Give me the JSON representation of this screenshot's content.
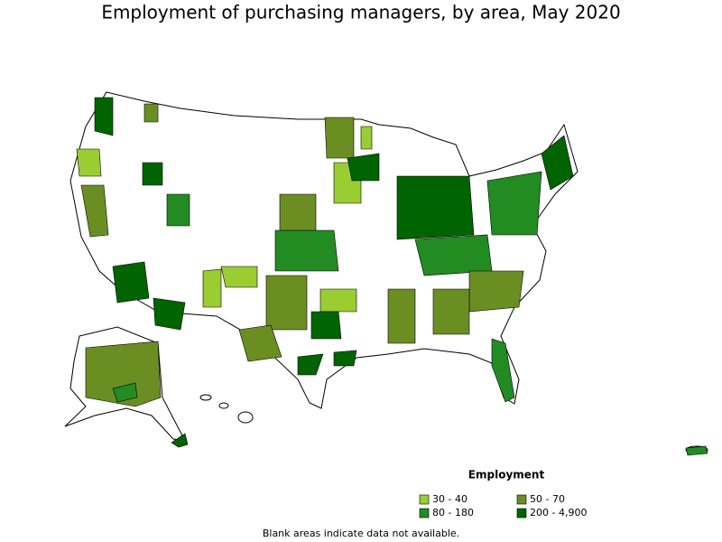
{
  "title": "Employment of purchasing managers, by area, May 2020",
  "legend": {
    "title": "Employment",
    "items": [
      {
        "label": "30 - 40",
        "color": "#9acd32"
      },
      {
        "label": "50 - 70",
        "color": "#6b8e23"
      },
      {
        "label": "80 - 180",
        "color": "#228b22"
      },
      {
        "label": "200 - 4,900",
        "color": "#006400"
      }
    ]
  },
  "note": "Blank areas indicate data not available."
}
